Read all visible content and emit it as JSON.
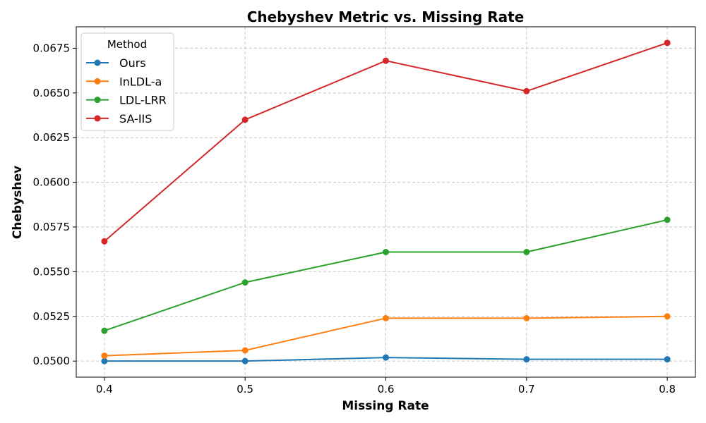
{
  "chart_data": {
    "type": "line",
    "title": "Chebyshev Metric vs. Missing Rate",
    "xlabel": "Missing Rate",
    "ylabel": "Chebyshev",
    "x": [
      0.4,
      0.5,
      0.6,
      0.7,
      0.8
    ],
    "x_tick_labels": [
      "0.4",
      "0.5",
      "0.6",
      "0.7",
      "0.8"
    ],
    "xlim": [
      0.38,
      0.82
    ],
    "ylim": [
      0.0491,
      0.0687
    ],
    "y_ticks": [
      0.05,
      0.0525,
      0.055,
      0.0575,
      0.06,
      0.0625,
      0.065,
      0.0675
    ],
    "y_tick_labels": [
      "0.0500",
      "0.0525",
      "0.0550",
      "0.0575",
      "0.0600",
      "0.0625",
      "0.0650",
      "0.0675"
    ],
    "grid": true,
    "legend": {
      "title": "Method",
      "placement": "top-left"
    },
    "series": [
      {
        "name": "Ours",
        "color": "#1f77b4",
        "values": [
          0.05,
          0.05,
          0.0502,
          0.0501,
          0.0501
        ]
      },
      {
        "name": "InLDL-a",
        "color": "#ff7f0e",
        "values": [
          0.0503,
          0.0506,
          0.0524,
          0.0524,
          0.0525
        ]
      },
      {
        "name": "LDL-LRR",
        "color": "#2ca02c",
        "values": [
          0.0517,
          0.0544,
          0.0561,
          0.0561,
          0.0579
        ]
      },
      {
        "name": "SA-IIS",
        "color": "#d62728",
        "values": [
          0.0567,
          0.0635,
          0.0668,
          0.0651,
          0.0678
        ]
      }
    ]
  }
}
